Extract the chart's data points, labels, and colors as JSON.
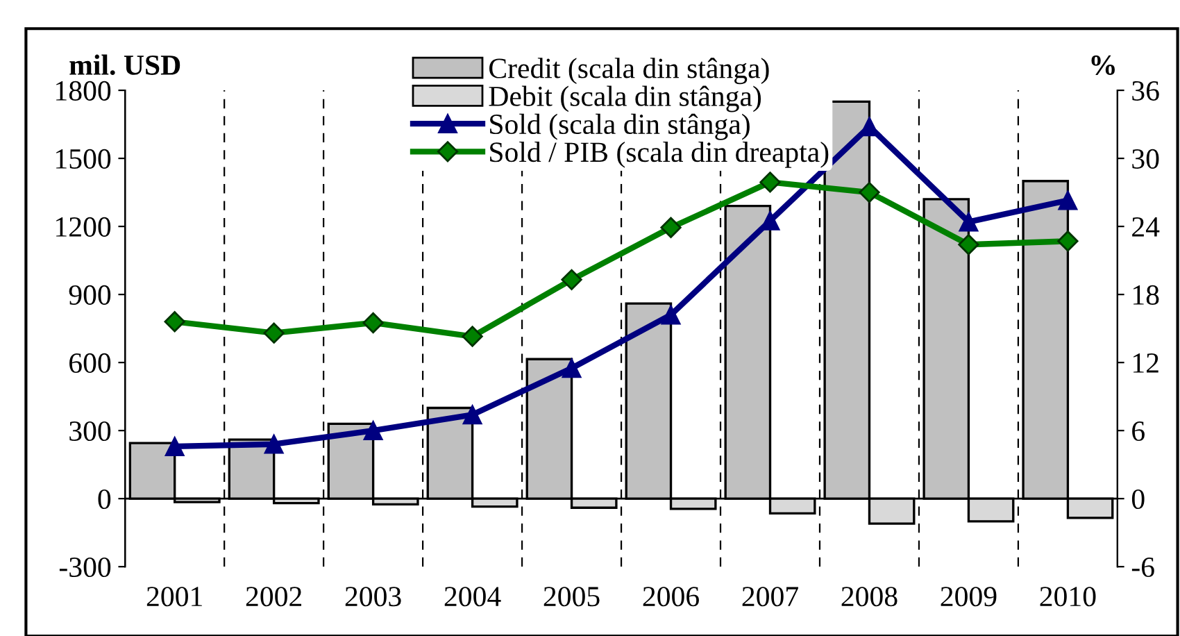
{
  "chart_data": {
    "type": "bar",
    "ylabel": "mil. USD",
    "y2label": "%",
    "categories": [
      "2001",
      "2002",
      "2003",
      "2004",
      "2005",
      "2006",
      "2007",
      "2008",
      "2009",
      "2010"
    ],
    "series": [
      {
        "name": "Credit (scala din stânga)",
        "color": "#c0c0c0",
        "values": [
          245,
          260,
          330,
          400,
          615,
          860,
          1290,
          1750,
          1320,
          1400
        ]
      },
      {
        "name": "Debit (scala din stânga)",
        "color": "#d9d9d9",
        "values": [
          -15,
          -20,
          -25,
          -35,
          -40,
          -45,
          -65,
          -110,
          -100,
          -85
        ]
      },
      {
        "name": "Sold (scala din stânga)",
        "type": "line",
        "color": "#000080",
        "marker": "triangle",
        "values": [
          230,
          240,
          300,
          370,
          575,
          810,
          1225,
          1640,
          1220,
          1315
        ]
      },
      {
        "name": "Sold / PIB (scala din dreapta)",
        "type": "line",
        "color": "#008000",
        "marker": "diamond",
        "axis": "y2",
        "values": [
          15.6,
          14.6,
          15.5,
          14.3,
          19.3,
          23.9,
          27.9,
          27.0,
          22.4,
          22.7
        ]
      }
    ],
    "ylim": [
      -300,
      1800
    ],
    "yticks": [
      -300,
      0,
      300,
      600,
      900,
      1200,
      1500,
      1800
    ],
    "y2lim": [
      -6,
      36
    ],
    "y2ticks": [
      -6,
      0,
      6,
      12,
      18,
      24,
      30,
      36
    ],
    "grid": "x",
    "legend": "top"
  }
}
